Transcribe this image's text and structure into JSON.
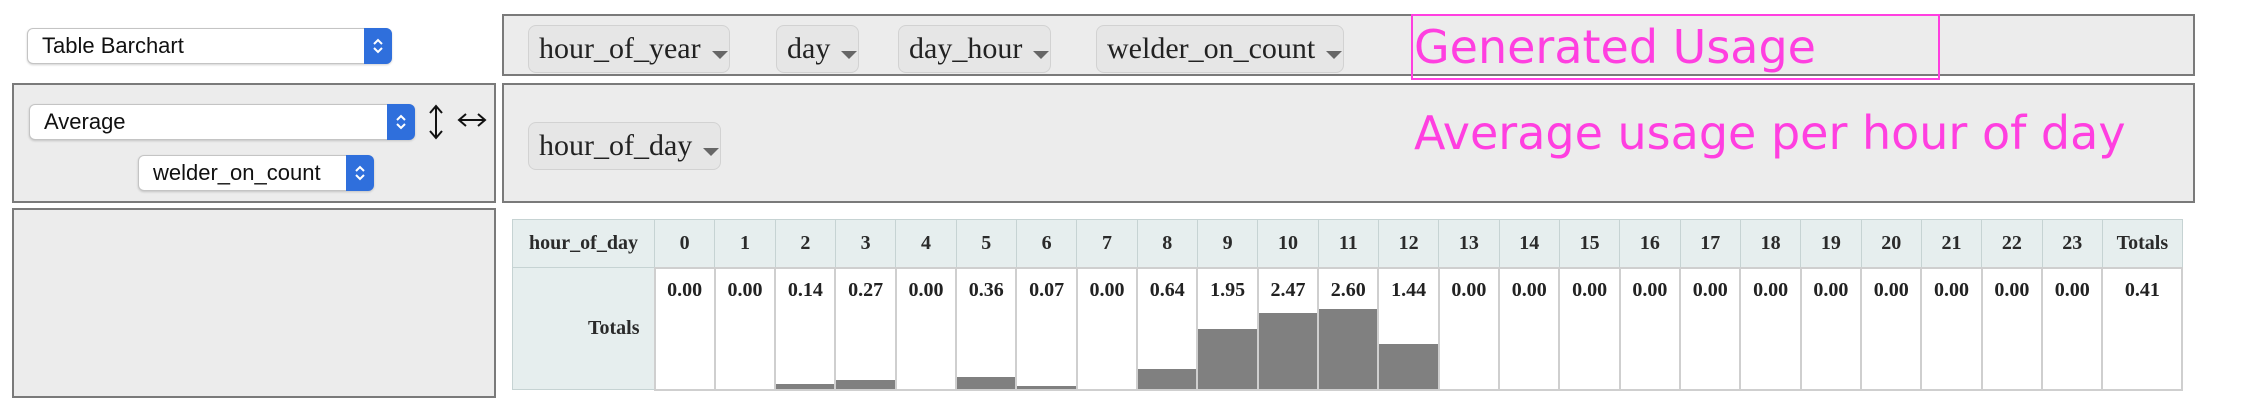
{
  "renderer_select": {
    "value": "Table Barchart"
  },
  "aggregator_select": {
    "value": "Average"
  },
  "attribute_select": {
    "value": "welder_on_count"
  },
  "unused_attrs": [
    "hour_of_year",
    "day",
    "day_hour",
    "welder_on_count"
  ],
  "col_attrs": [
    "hour_of_day"
  ],
  "annotations": {
    "title": "Generated Usage",
    "subtitle": "Average usage per hour of day"
  },
  "table": {
    "corner_label": "hour_of_day",
    "headers": [
      "0",
      "1",
      "2",
      "3",
      "4",
      "5",
      "6",
      "7",
      "8",
      "9",
      "10",
      "11",
      "12",
      "13",
      "14",
      "15",
      "16",
      "17",
      "18",
      "19",
      "20",
      "21",
      "22",
      "23"
    ],
    "totals_header": "Totals",
    "row_label": "Totals",
    "values": [
      "0.00",
      "0.00",
      "0.14",
      "0.27",
      "0.00",
      "0.36",
      "0.07",
      "0.00",
      "0.64",
      "1.95",
      "2.47",
      "2.60",
      "1.44",
      "0.00",
      "0.00",
      "0.00",
      "0.00",
      "0.00",
      "0.00",
      "0.00",
      "0.00",
      "0.00",
      "0.00",
      "0.00"
    ],
    "grand_total": "0.41"
  },
  "colors": {
    "bar": "#808080",
    "annotation": "#ff3fe0",
    "select_arrows": "#2f6fdc"
  }
}
